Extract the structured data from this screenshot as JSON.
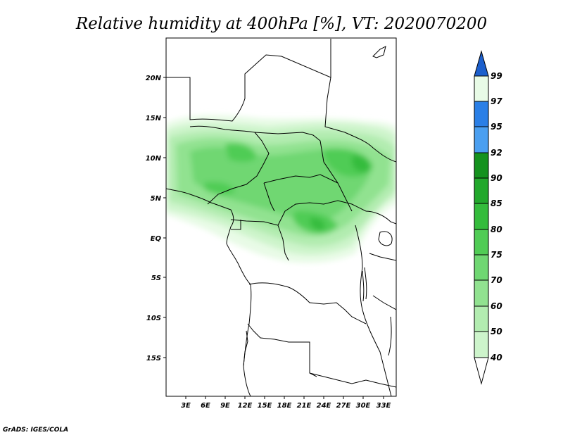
{
  "title": "Relative humidity at 400hPa [%], VT: 2020070200",
  "credit": "GrADS: IGES/COLA",
  "lon_ticks": [
    "3E",
    "6E",
    "9E",
    "12E",
    "15E",
    "18E",
    "21E",
    "24E",
    "27E",
    "30E",
    "33E"
  ],
  "lat_ticks": [
    "20N",
    "15N",
    "10N",
    "5N",
    "EQ",
    "5S",
    "10S",
    "15S"
  ],
  "colorbar": {
    "levels": [
      "99",
      "97",
      "95",
      "92",
      "90",
      "85",
      "80",
      "75",
      "70",
      "60",
      "50",
      "40"
    ],
    "colors": [
      "#1c5fcc",
      "#2a7fe6",
      "#4a9ff0",
      "#14921e",
      "#22a82c",
      "#34bc3c",
      "#50cc55",
      "#6fd772",
      "#91e290",
      "#b2ecb0",
      "#cdf4cb",
      "#e8fbe6"
    ]
  },
  "extent": {
    "lon": [
      0,
      35
    ],
    "lat": [
      -20,
      25
    ]
  }
}
